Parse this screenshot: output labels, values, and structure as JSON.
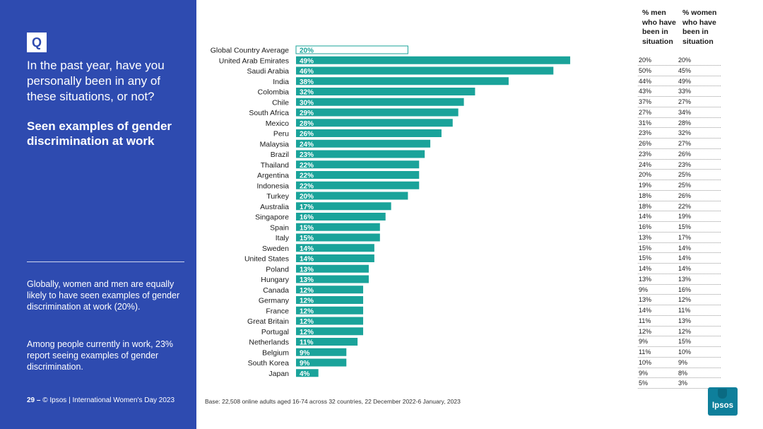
{
  "sidebar": {
    "badge": "Q",
    "question": "In the past year, have you personally been in any of these situations, or not?",
    "subtitle": "Seen examples of gender discrimination at work",
    "note1": "Globally, women and men are equally likely to have seen examples of gender discrimination at work (20%).",
    "note2": "Among people currently in work, 23% report seeing examples of gender discrimination.",
    "page_number": "29 –",
    "footer_text": "© Ipsos | International Women's Day 2023"
  },
  "base_note": "Base: 22,508 online adults aged 16-74 across 32 countries, 22 December 2022-6 January, 2023",
  "table": {
    "header_men": "% men who have been in situation",
    "header_women": "% women who have been in situation",
    "rows": [
      {
        "men": "20%",
        "women": "20%"
      },
      {
        "men": "50%",
        "women": "45%"
      },
      {
        "men": "44%",
        "women": "49%"
      },
      {
        "men": "43%",
        "women": "33%"
      },
      {
        "men": "37%",
        "women": "27%"
      },
      {
        "men": "27%",
        "women": "34%"
      },
      {
        "men": "31%",
        "women": "28%"
      },
      {
        "men": "23%",
        "women": "32%"
      },
      {
        "men": "26%",
        "women": "27%"
      },
      {
        "men": "23%",
        "women": "26%"
      },
      {
        "men": "24%",
        "women": "23%"
      },
      {
        "men": "20%",
        "women": "25%"
      },
      {
        "men": "19%",
        "women": "25%"
      },
      {
        "men": "18%",
        "women": "26%"
      },
      {
        "men": "18%",
        "women": "22%"
      },
      {
        "men": "14%",
        "women": "19%"
      },
      {
        "men": "16%",
        "women": "15%"
      },
      {
        "men": "13%",
        "women": "17%"
      },
      {
        "men": "15%",
        "women": "14%"
      },
      {
        "men": "15%",
        "women": "14%"
      },
      {
        "men": "14%",
        "women": "14%"
      },
      {
        "men": "13%",
        "women": "13%"
      },
      {
        "men": "9%",
        "women": "16%"
      },
      {
        "men": "13%",
        "women": "12%"
      },
      {
        "men": "14%",
        "women": "11%"
      },
      {
        "men": "11%",
        "women": "13%"
      },
      {
        "men": "12%",
        "women": "12%"
      },
      {
        "men": "9%",
        "women": "15%"
      },
      {
        "men": "11%",
        "women": "10%"
      },
      {
        "men": "10%",
        "women": "9%"
      },
      {
        "men": "9%",
        "women": "8%"
      },
      {
        "men": "5%",
        "women": "3%"
      }
    ]
  },
  "logo_text": "Ipsos",
  "colors": {
    "sidebar": "#2e4bb0",
    "bar": "#1aa39a",
    "average_outline": "#1aa39a"
  },
  "chart_data": {
    "type": "bar",
    "orientation": "horizontal",
    "categories": [
      "Global Country Average",
      "United Arab Emirates",
      "Saudi Arabia",
      "India",
      "Colombia",
      "Chile",
      "South Africa",
      "Mexico",
      "Peru",
      "Malaysia",
      "Brazil",
      "Thailand",
      "Argentina",
      "Indonesia",
      "Turkey",
      "Australia",
      "Singapore",
      "Spain",
      "Italy",
      "Sweden",
      "United States",
      "Poland",
      "Hungary",
      "Canada",
      "Germany",
      "France",
      "Great Britain",
      "Portugal",
      "Netherlands",
      "Belgium",
      "South Korea",
      "Japan"
    ],
    "values": [
      20,
      49,
      46,
      38,
      32,
      30,
      29,
      28,
      26,
      24,
      23,
      22,
      22,
      22,
      20,
      17,
      16,
      15,
      15,
      14,
      14,
      13,
      13,
      12,
      12,
      12,
      12,
      12,
      11,
      9,
      9,
      4
    ],
    "value_labels": [
      "20%",
      "49%",
      "46%",
      "38%",
      "32%",
      "30%",
      "29%",
      "28%",
      "26%",
      "24%",
      "23%",
      "22%",
      "22%",
      "22%",
      "20%",
      "17%",
      "16%",
      "15%",
      "15%",
      "14%",
      "14%",
      "13%",
      "13%",
      "12%",
      "12%",
      "12%",
      "12%",
      "12%",
      "11%",
      "9%",
      "9%",
      "4%"
    ],
    "title": "",
    "xlabel": "",
    "ylabel": "",
    "xlim": [
      0,
      50
    ],
    "grid": false,
    "legend": "none"
  }
}
